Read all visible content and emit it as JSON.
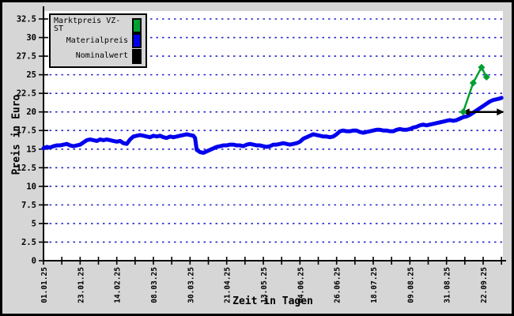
{
  "figure": {
    "background": "#d6d6d6",
    "plot_background": "#ffffff",
    "border_color": "#000000"
  },
  "chart_data": {
    "type": "line",
    "title": "",
    "xlabel": "Zeit in Tagen",
    "ylabel": "Preis in Euro",
    "ylim": [
      0,
      32.5
    ],
    "ytick_step": 2.5,
    "ytick_labels": [
      "0",
      "2.5",
      "5",
      "7.5",
      "10",
      "12.5",
      "15",
      "17.5",
      "20",
      "22.5",
      "25",
      "27.5",
      "30",
      "32.5"
    ],
    "xlim_days": [
      0,
      276
    ],
    "xtick_major_days": [
      0,
      22,
      44,
      66,
      88,
      110,
      132,
      154,
      176,
      198,
      220,
      242,
      264
    ],
    "xtick_labels": [
      "01.01.25",
      "23.01.25",
      "14.02.25",
      "08.03.25",
      "30.03.25",
      "21.04.25",
      "13.05.25",
      "04.06.25",
      "26.06.25",
      "18.07.25",
      "09.08.25",
      "31.08.25",
      "22.09.25"
    ],
    "xtick_minor_step": 11,
    "grid": "horizontal-dotted",
    "grid_color": "#2222cc",
    "legend_position": "top-left",
    "series": [
      {
        "name": "Marktpreis VZ-ST",
        "color": "#00a030",
        "style": "line-with-diamond-markers",
        "points": [
          [
            252,
            20.0
          ],
          [
            258,
            23.9
          ],
          [
            263,
            26.0
          ],
          [
            266,
            24.7
          ]
        ]
      },
      {
        "name": "Materialpreis",
        "color": "#0000ee",
        "style": "thick-line",
        "points": [
          [
            0,
            15.1
          ],
          [
            2,
            15.3
          ],
          [
            4,
            15.2
          ],
          [
            6,
            15.4
          ],
          [
            8,
            15.5
          ],
          [
            10,
            15.5
          ],
          [
            12,
            15.6
          ],
          [
            14,
            15.7
          ],
          [
            16,
            15.5
          ],
          [
            18,
            15.4
          ],
          [
            20,
            15.5
          ],
          [
            22,
            15.6
          ],
          [
            24,
            15.9
          ],
          [
            26,
            16.2
          ],
          [
            28,
            16.3
          ],
          [
            30,
            16.2
          ],
          [
            32,
            16.1
          ],
          [
            34,
            16.3
          ],
          [
            36,
            16.2
          ],
          [
            38,
            16.3
          ],
          [
            40,
            16.2
          ],
          [
            42,
            16.1
          ],
          [
            44,
            16.0
          ],
          [
            46,
            16.1
          ],
          [
            48,
            15.8
          ],
          [
            50,
            15.7
          ],
          [
            52,
            16.3
          ],
          [
            54,
            16.7
          ],
          [
            56,
            16.8
          ],
          [
            58,
            16.9
          ],
          [
            60,
            16.8
          ],
          [
            62,
            16.7
          ],
          [
            64,
            16.6
          ],
          [
            66,
            16.8
          ],
          [
            68,
            16.7
          ],
          [
            70,
            16.8
          ],
          [
            72,
            16.6
          ],
          [
            74,
            16.5
          ],
          [
            76,
            16.7
          ],
          [
            78,
            16.6
          ],
          [
            80,
            16.7
          ],
          [
            82,
            16.8
          ],
          [
            84,
            16.9
          ],
          [
            86,
            17.0
          ],
          [
            88,
            16.9
          ],
          [
            90,
            16.8
          ],
          [
            91,
            16.5
          ],
          [
            92,
            14.9
          ],
          [
            94,
            14.6
          ],
          [
            96,
            14.5
          ],
          [
            98,
            14.7
          ],
          [
            100,
            14.9
          ],
          [
            102,
            15.1
          ],
          [
            104,
            15.3
          ],
          [
            106,
            15.4
          ],
          [
            108,
            15.5
          ],
          [
            110,
            15.5
          ],
          [
            112,
            15.6
          ],
          [
            114,
            15.6
          ],
          [
            116,
            15.5
          ],
          [
            118,
            15.5
          ],
          [
            120,
            15.4
          ],
          [
            122,
            15.6
          ],
          [
            124,
            15.7
          ],
          [
            126,
            15.6
          ],
          [
            128,
            15.5
          ],
          [
            130,
            15.5
          ],
          [
            132,
            15.4
          ],
          [
            134,
            15.3
          ],
          [
            136,
            15.4
          ],
          [
            138,
            15.6
          ],
          [
            140,
            15.6
          ],
          [
            142,
            15.7
          ],
          [
            144,
            15.8
          ],
          [
            146,
            15.7
          ],
          [
            148,
            15.6
          ],
          [
            150,
            15.7
          ],
          [
            152,
            15.8
          ],
          [
            154,
            16.0
          ],
          [
            156,
            16.4
          ],
          [
            158,
            16.6
          ],
          [
            160,
            16.8
          ],
          [
            162,
            17.0
          ],
          [
            164,
            16.9
          ],
          [
            166,
            16.8
          ],
          [
            168,
            16.7
          ],
          [
            170,
            16.7
          ],
          [
            172,
            16.6
          ],
          [
            174,
            16.7
          ],
          [
            176,
            17.0
          ],
          [
            178,
            17.4
          ],
          [
            180,
            17.5
          ],
          [
            182,
            17.4
          ],
          [
            184,
            17.4
          ],
          [
            186,
            17.5
          ],
          [
            188,
            17.5
          ],
          [
            190,
            17.3
          ],
          [
            192,
            17.2
          ],
          [
            194,
            17.3
          ],
          [
            196,
            17.4
          ],
          [
            198,
            17.5
          ],
          [
            200,
            17.6
          ],
          [
            202,
            17.6
          ],
          [
            204,
            17.5
          ],
          [
            206,
            17.5
          ],
          [
            208,
            17.4
          ],
          [
            210,
            17.4
          ],
          [
            212,
            17.6
          ],
          [
            214,
            17.7
          ],
          [
            216,
            17.6
          ],
          [
            218,
            17.6
          ],
          [
            220,
            17.7
          ],
          [
            222,
            17.9
          ],
          [
            224,
            18.0
          ],
          [
            226,
            18.2
          ],
          [
            228,
            18.3
          ],
          [
            230,
            18.2
          ],
          [
            232,
            18.3
          ],
          [
            234,
            18.4
          ],
          [
            236,
            18.5
          ],
          [
            238,
            18.6
          ],
          [
            240,
            18.7
          ],
          [
            242,
            18.8
          ],
          [
            244,
            18.9
          ],
          [
            246,
            18.8
          ],
          [
            248,
            18.9
          ],
          [
            250,
            19.1
          ],
          [
            252,
            19.3
          ],
          [
            254,
            19.4
          ],
          [
            256,
            19.6
          ],
          [
            258,
            19.9
          ],
          [
            260,
            20.2
          ],
          [
            262,
            20.5
          ],
          [
            264,
            20.8
          ],
          [
            266,
            21.1
          ],
          [
            268,
            21.4
          ],
          [
            270,
            21.6
          ],
          [
            272,
            21.7
          ],
          [
            274,
            21.8
          ],
          [
            275,
            21.9
          ]
        ]
      },
      {
        "name": "Nominalwert",
        "color": "#000000",
        "style": "horizontal-double-arrow",
        "value": 20,
        "from_day": 252,
        "to_day": 276,
        "points": [
          [
            252,
            20
          ],
          [
            276,
            20
          ]
        ]
      }
    ]
  }
}
